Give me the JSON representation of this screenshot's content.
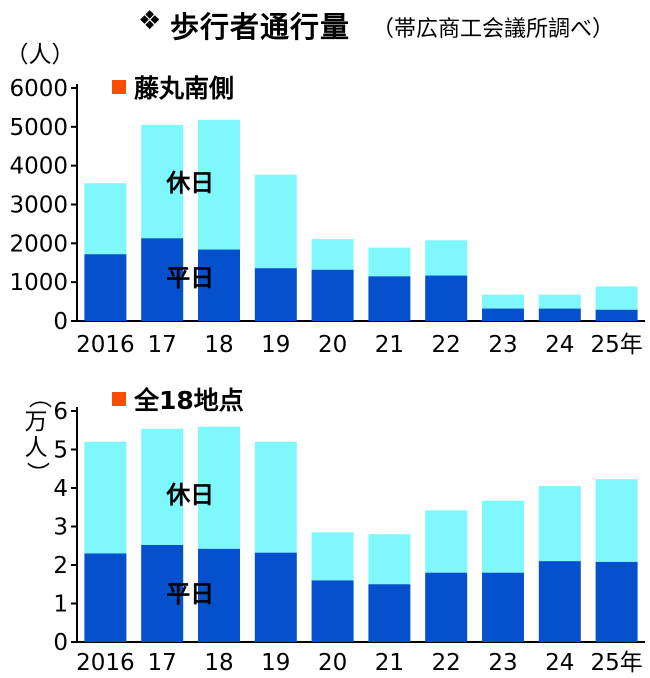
{
  "header": {
    "diamond": "❖",
    "title": "歩行者通行量",
    "source": "（帯広商工会議所調べ）"
  },
  "colors": {
    "weekend": "#7ff8fd",
    "weekday": "#0550cc",
    "legend_marker": "#ff4a00"
  },
  "chart_data": [
    {
      "type": "bar",
      "title": "藤丸南側",
      "unit_label": "（人）",
      "categories": [
        "2016",
        "17",
        "18",
        "19",
        "20",
        "21",
        "22",
        "23",
        "24",
        "25年"
      ],
      "ylim": [
        0,
        6000
      ],
      "yticks": [
        "0",
        "1000",
        "2000",
        "3000",
        "4000",
        "5000",
        "6000"
      ],
      "stacked": true,
      "series": [
        {
          "name": "平日",
          "values": [
            1720,
            2130,
            1840,
            1360,
            1320,
            1150,
            1170,
            320,
            320,
            290
          ]
        },
        {
          "name": "休日",
          "values": [
            1830,
            2920,
            3340,
            2410,
            790,
            740,
            910,
            360,
            360,
            600
          ]
        }
      ]
    },
    {
      "type": "bar",
      "title": "全18地点",
      "unit_label": "（万人）",
      "categories": [
        "2016",
        "17",
        "18",
        "19",
        "20",
        "21",
        "22",
        "23",
        "24",
        "25年"
      ],
      "ylim": [
        0,
        6
      ],
      "yticks": [
        "0",
        "1",
        "2",
        "3",
        "4",
        "5",
        "6"
      ],
      "stacked": true,
      "series": [
        {
          "name": "平日",
          "values": [
            2.3,
            2.52,
            2.42,
            2.32,
            1.6,
            1.5,
            1.8,
            1.8,
            2.1,
            2.08
          ]
        },
        {
          "name": "休日",
          "values": [
            2.9,
            3.02,
            3.17,
            2.88,
            1.25,
            1.3,
            1.62,
            1.87,
            1.95,
            2.15
          ]
        }
      ]
    }
  ]
}
